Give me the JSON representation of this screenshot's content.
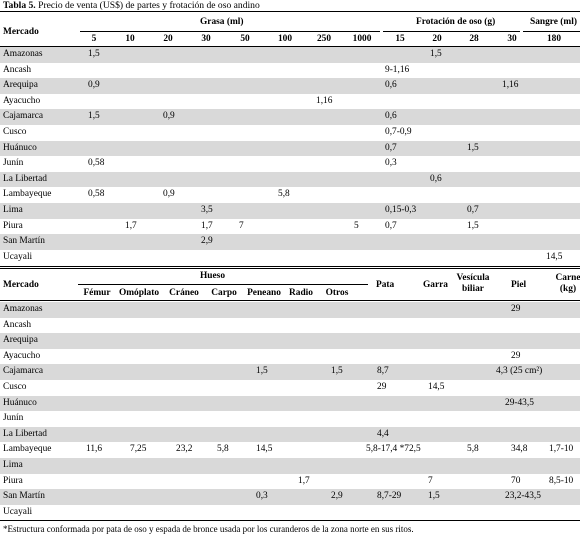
{
  "caption": {
    "label": "Tabla 5.",
    "text": " Precio de venta (US$) de partes y frotación de oso andino"
  },
  "table1": {
    "header": {
      "mercado": "Mercado",
      "grasa": "Grasa (ml)",
      "frotacion": "Frotación de oso (g)",
      "sangre": "Sangre (ml)",
      "cols": [
        "5",
        "10",
        "20",
        "30",
        "50",
        "100",
        "250",
        "1000",
        "15",
        "20",
        "28",
        "30",
        "180"
      ]
    },
    "rows": [
      {
        "market": "Amazonas",
        "cells": [
          "1,5",
          "",
          "",
          "",
          "",
          "",
          "",
          "",
          "",
          "1,5",
          "",
          "",
          ""
        ]
      },
      {
        "market": "Ancash",
        "cells": [
          "",
          "",
          "",
          "",
          "",
          "",
          "",
          "",
          "9-1,16",
          "",
          "",
          "",
          ""
        ]
      },
      {
        "market": "Arequipa",
        "cells": [
          "0,9",
          "",
          "",
          "",
          "",
          "",
          "",
          "",
          "0,6",
          "",
          "",
          "1,16",
          ""
        ]
      },
      {
        "market": "Ayacucho",
        "cells": [
          "",
          "",
          "",
          "",
          "",
          "",
          "1,16",
          "",
          "",
          "",
          "",
          "",
          ""
        ]
      },
      {
        "market": "Cajamarca",
        "cells": [
          "1,5",
          "",
          "0,9",
          "",
          "",
          "",
          "",
          "",
          "0,6",
          "",
          "",
          "",
          ""
        ]
      },
      {
        "market": "Cusco",
        "cells": [
          "",
          "",
          "",
          "",
          "",
          "",
          "",
          "",
          "0,7-0,9",
          "",
          "",
          "",
          ""
        ]
      },
      {
        "market": "Huánuco",
        "cells": [
          "",
          "",
          "",
          "",
          "",
          "",
          "",
          "",
          "0,7",
          "",
          "1,5",
          "",
          ""
        ]
      },
      {
        "market": "Junín",
        "cells": [
          "0,58",
          "",
          "",
          "",
          "",
          "",
          "",
          "",
          "0,3",
          "",
          "",
          "",
          ""
        ]
      },
      {
        "market": "La Libertad",
        "cells": [
          "",
          "",
          "",
          "",
          "",
          "",
          "",
          "",
          "",
          "0,6",
          "",
          "",
          ""
        ]
      },
      {
        "market": "Lambayeque",
        "cells": [
          "0,58",
          "",
          "0,9",
          "",
          "",
          "5,8",
          "",
          "",
          "",
          "",
          "",
          "",
          ""
        ]
      },
      {
        "market": "Lima",
        "cells": [
          "",
          "",
          "",
          "3,5",
          "",
          "",
          "",
          "",
          "0,15-0,3",
          "",
          "0,7",
          "",
          ""
        ]
      },
      {
        "market": "Piura",
        "cells": [
          "",
          "1,7",
          "",
          "1,7",
          "7",
          "",
          "",
          "5",
          "0,7",
          "",
          "1,5",
          "",
          ""
        ]
      },
      {
        "market": "San Martín",
        "cells": [
          "",
          "",
          "",
          "2,9",
          "",
          "",
          "",
          "",
          "",
          "",
          "",
          "",
          ""
        ]
      },
      {
        "market": "Ucayali",
        "cells": [
          "",
          "",
          "",
          "",
          "",
          "",
          "",
          "",
          "",
          "",
          "",
          "",
          "14,5"
        ]
      }
    ]
  },
  "table2": {
    "header": {
      "mercado": "Mercado",
      "hueso": "Hueso",
      "hueso_cols": [
        "Fémur",
        "Omóplato",
        "Cráneo",
        "Carpo",
        "Peneano",
        "Radio",
        "Otros"
      ],
      "pata": "Pata",
      "garra": "Garra",
      "vesicula_1": "Vesícula",
      "vesicula_2": "biliar",
      "piel": "Piel",
      "carne_1": "Carne",
      "carne_2": "(kg)"
    },
    "rows": [
      {
        "market": "Amazonas",
        "cells": [
          "",
          "",
          "",
          "",
          "",
          "",
          "",
          "",
          "",
          "",
          "29",
          ""
        ]
      },
      {
        "market": "Ancash",
        "cells": [
          "",
          "",
          "",
          "",
          "",
          "",
          "",
          "",
          "",
          "",
          "",
          ""
        ]
      },
      {
        "market": "Arequipa",
        "cells": [
          "",
          "",
          "",
          "",
          "",
          "",
          "",
          "",
          "",
          "",
          "",
          ""
        ]
      },
      {
        "market": "Ayacucho",
        "cells": [
          "",
          "",
          "",
          "",
          "",
          "",
          "",
          "",
          "",
          "",
          "29",
          ""
        ]
      },
      {
        "market": "Cajamarca",
        "cells": [
          "",
          "",
          "",
          "",
          "1,5",
          "",
          "1,5",
          "8,7",
          "",
          "",
          "4,3 (25 cm²)",
          ""
        ]
      },
      {
        "market": "Cusco",
        "cells": [
          "",
          "",
          "",
          "",
          "",
          "",
          "",
          "29",
          "14,5",
          "",
          "",
          ""
        ]
      },
      {
        "market": "Huánuco",
        "cells": [
          "",
          "",
          "",
          "",
          "",
          "",
          "",
          "",
          "",
          "",
          "29-43,5",
          ""
        ]
      },
      {
        "market": "Junín",
        "cells": [
          "",
          "",
          "",
          "",
          "",
          "",
          "",
          "",
          "",
          "",
          "",
          ""
        ]
      },
      {
        "market": "La Libertad",
        "cells": [
          "",
          "",
          "",
          "",
          "",
          "",
          "",
          "4,4",
          "",
          "",
          "",
          ""
        ]
      },
      {
        "market": "Lambayeque",
        "cells": [
          "11,6",
          "7,25",
          "23,2",
          "5,8",
          "14,5",
          "",
          "",
          "5,8-17,4 *72,5",
          "",
          "5,8",
          "34,8",
          "1,7-10"
        ]
      },
      {
        "market": "Lima",
        "cells": [
          "",
          "",
          "",
          "",
          "",
          "",
          "",
          "",
          "",
          "",
          "",
          ""
        ]
      },
      {
        "market": "Piura",
        "cells": [
          "",
          "",
          "",
          "",
          "",
          "1,7",
          "",
          "",
          "7",
          "",
          "70",
          "8,5-10"
        ]
      },
      {
        "market": "San Martín",
        "cells": [
          "",
          "",
          "",
          "",
          "0,3",
          "",
          "2,9",
          "8,7-29",
          "1,5",
          "",
          "23,2-43,5",
          ""
        ]
      },
      {
        "market": "Ucayali",
        "cells": [
          "",
          "",
          "",
          "",
          "",
          "",
          "",
          "",
          "",
          "",
          "",
          ""
        ]
      }
    ]
  },
  "footnote": "*Estructura conformada por pata de oso y espada de bronce usada por los curanderos de la zona norte en sus ritos."
}
